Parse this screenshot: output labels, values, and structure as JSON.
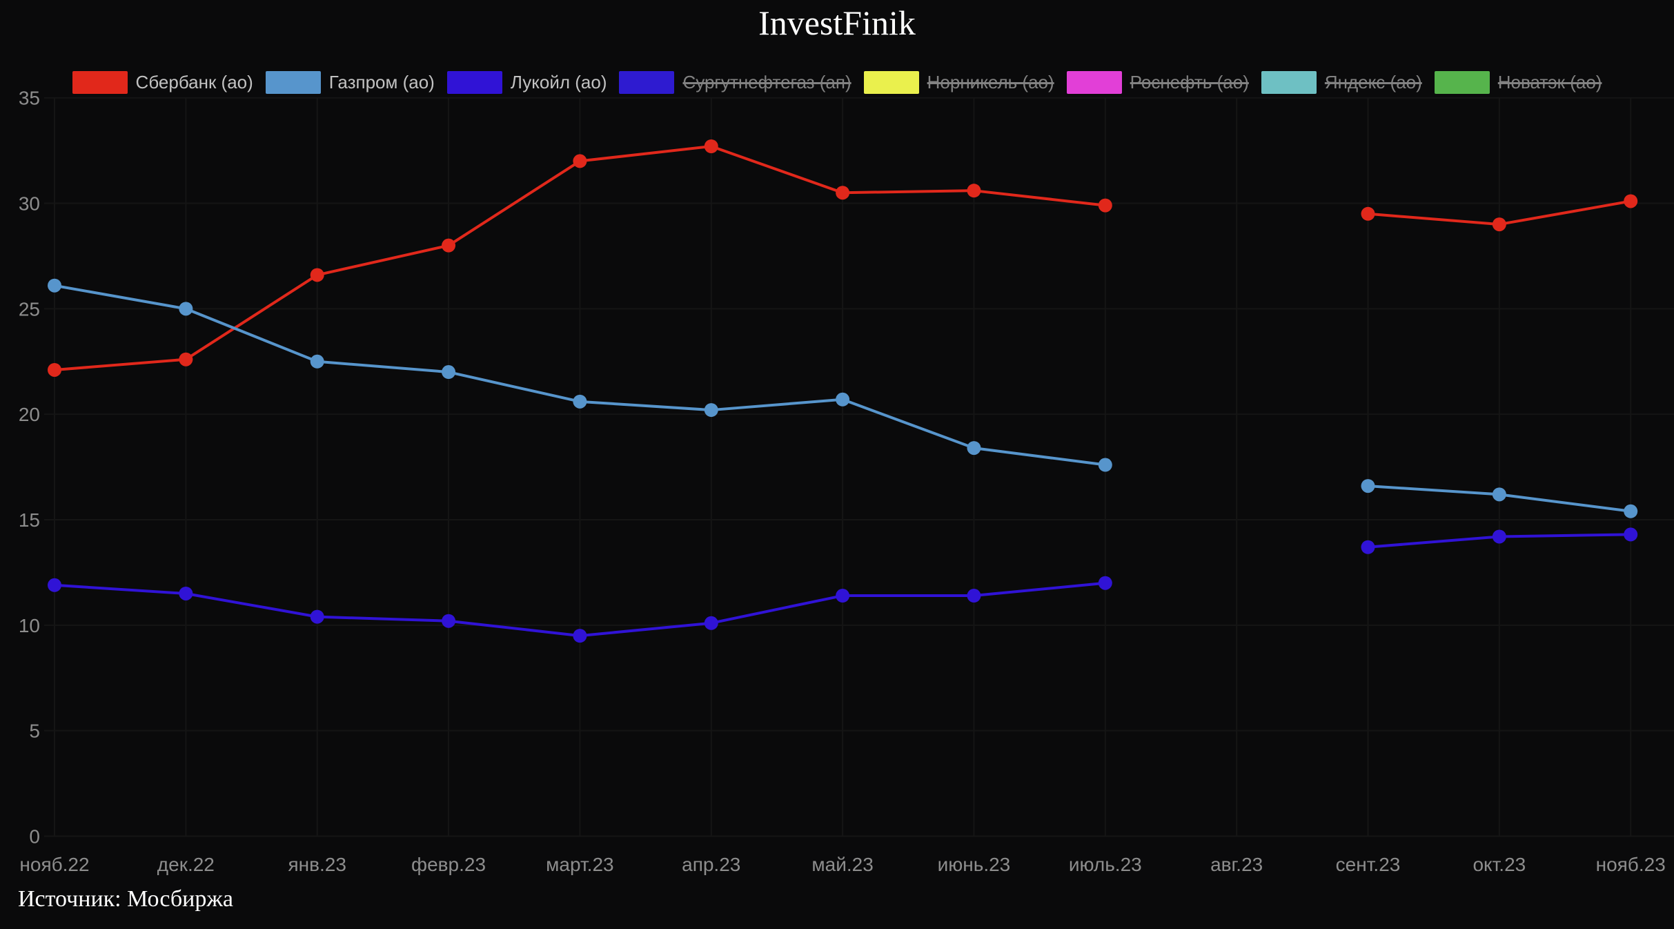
{
  "page": {
    "title": "InvestFinik",
    "source_note": "Источник: Мосбиржа"
  },
  "chart_data": {
    "type": "line",
    "title": "InvestFinik",
    "source_note": "Источник: Мосбиржа",
    "background": "#0a0a0b",
    "grid": true,
    "legend_position": "top",
    "ylim": [
      0,
      35
    ],
    "yticks": [
      0,
      5,
      10,
      15,
      20,
      25,
      30,
      35
    ],
    "categories": [
      "нояб.22",
      "дек.22",
      "янв.23",
      "февр.23",
      "март.23",
      "апр.23",
      "май.23",
      "июнь.23",
      "июль.23",
      "авг.23",
      "сент.23",
      "окт.23",
      "нояб.23"
    ],
    "gap_note": "no data plotted for авг.23 — all lines break between июль.23 and сент.23",
    "series": [
      {
        "name": "Сбербанк (ао)",
        "color": "#e1281b",
        "enabled": true,
        "values": [
          22.1,
          22.6,
          26.6,
          28.0,
          32.0,
          32.7,
          30.5,
          30.6,
          29.9,
          null,
          29.5,
          29.0,
          30.1
        ]
      },
      {
        "name": "Газпром (ао)",
        "color": "#5795cc",
        "enabled": true,
        "values": [
          26.1,
          25.0,
          22.5,
          22.0,
          20.6,
          20.2,
          20.7,
          18.4,
          17.6,
          null,
          16.6,
          16.2,
          15.4
        ]
      },
      {
        "name": "Лукойл (ао)",
        "color": "#3013d6",
        "enabled": true,
        "values": [
          11.9,
          11.5,
          10.4,
          10.2,
          9.5,
          10.1,
          11.4,
          11.4,
          12.0,
          null,
          13.7,
          14.2,
          14.3
        ]
      },
      {
        "name": "Сургутнефтегаз (ап)",
        "color": "#2e1bd0",
        "enabled": false,
        "values": null
      },
      {
        "name": "Норникель (ао)",
        "color": "#eaf04d",
        "enabled": false,
        "values": null
      },
      {
        "name": "Роснефть (ао)",
        "color": "#e23fd7",
        "enabled": false,
        "values": null
      },
      {
        "name": "Яндекс (ао)",
        "color": "#6ec0c3",
        "enabled": false,
        "values": null
      },
      {
        "name": "Новатэк (ао)",
        "color": "#56b44c",
        "enabled": false,
        "values": null
      }
    ],
    "axis_style": {
      "tick_label_color": "#8d8d8d",
      "gridline_color": "#151515"
    }
  }
}
